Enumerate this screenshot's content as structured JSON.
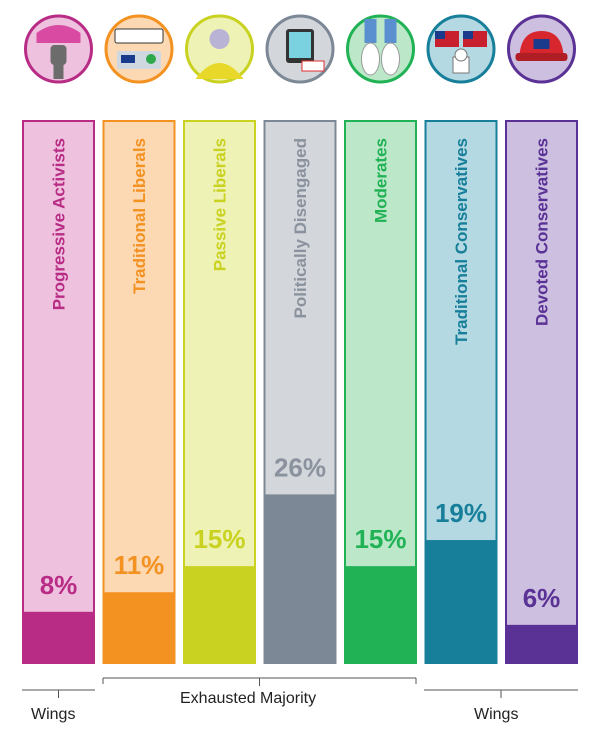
{
  "chart_data": {
    "type": "bar",
    "categories": [
      "Progressive Activists",
      "Traditional Liberals",
      "Passive Liberals",
      "Politically Disengaged",
      "Moderates",
      "Traditional Conservatives",
      "Devoted Conservatives"
    ],
    "values": [
      8,
      11,
      15,
      26,
      15,
      19,
      6
    ],
    "value_labels": [
      "8%",
      "11%",
      "15%",
      "26%",
      "15%",
      "19%",
      "6%"
    ],
    "ylim": [
      0,
      100
    ],
    "colors": {
      "dark": [
        "#b82c86",
        "#f39121",
        "#c9d220",
        "#7d8896",
        "#20b255",
        "#177f9a",
        "#5a3296"
      ],
      "light": [
        "#eec2de",
        "#fcd8b3",
        "#eef2b4",
        "#d3d6db",
        "#bce8c9",
        "#b5d9e2",
        "#cdbfe0"
      ],
      "text": [
        "#b82c86",
        "#f39121",
        "#c9d220",
        "#8a929d",
        "#20b255",
        "#177f9a",
        "#5a3296"
      ]
    },
    "icons": [
      "raised-fist-icon",
      "license-plate-icon",
      "person-yellow-shirt-icon",
      "phone-app-icon",
      "sneakers-icon",
      "american-flag-capitol-icon",
      "red-cap-flag-icon"
    ]
  },
  "groups": {
    "left": "Wings",
    "middle": "Exhausted Majority",
    "right": "Wings"
  }
}
